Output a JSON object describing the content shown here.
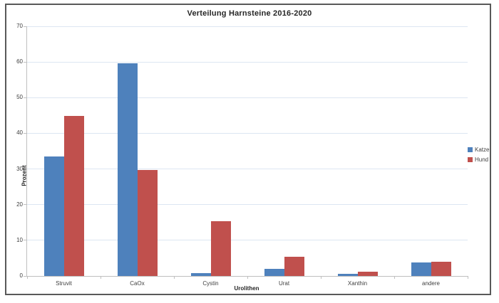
{
  "chart_data": {
    "type": "bar",
    "title": "Verteilung Harnsteine 2016-2020",
    "xlabel": "Urolithen",
    "ylabel": "Prozent",
    "categories": [
      "Struvit",
      "CaOx",
      "Cystin",
      "Urat",
      "Xanthin",
      "andere"
    ],
    "series": [
      {
        "name": "Katze",
        "color": "#4e81bc",
        "values": [
          33.6,
          59.6,
          0.8,
          2.0,
          0.7,
          3.8
        ]
      },
      {
        "name": "Hund",
        "color": "#c0504d",
        "values": [
          44.9,
          29.7,
          15.3,
          5.4,
          1.2,
          3.9
        ]
      }
    ],
    "ylim": [
      0,
      70
    ],
    "yticks": [
      0,
      10,
      20,
      30,
      40,
      50,
      60,
      70
    ],
    "grid": true,
    "legend_position": "right"
  },
  "colors": {
    "frame_border": "#595959",
    "gridline": "#dce6f2",
    "axis_line": "#bfbfbf",
    "text": "#404040",
    "title_text": "#262626"
  }
}
